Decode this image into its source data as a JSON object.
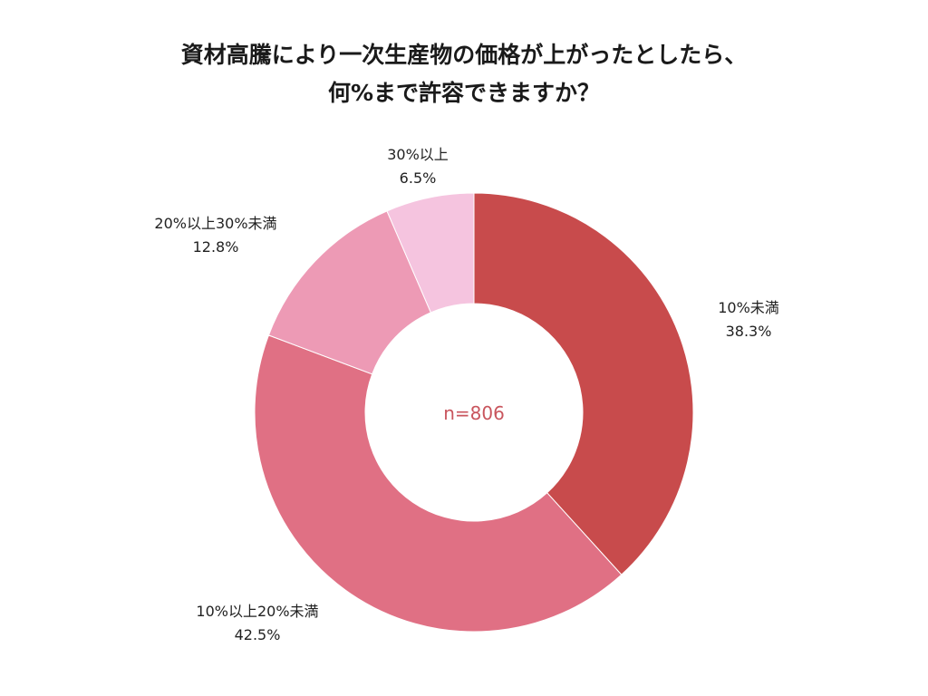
{
  "chart_data": {
    "type": "pie",
    "donut": true,
    "title": [
      "資材高騰により一次生産物の価格が上がったとしたら、",
      "何%まで許容できますか？"
    ],
    "center_label": "n=806",
    "center_color": "#c9555d",
    "legend": "none",
    "slices": [
      {
        "label": "10%未満",
        "value": 38.3,
        "value_label": "38.3%",
        "color": "#c84b4c"
      },
      {
        "label": "10%以上20%未満",
        "value": 42.5,
        "value_label": "42.5%",
        "color": "#e07084"
      },
      {
        "label": "20%以上30%未満",
        "value": 12.8,
        "value_label": "12.8%",
        "color": "#ed9ab5"
      },
      {
        "label": "30%以上",
        "value": 6.5,
        "value_label": "6.5%",
        "color": "#f5c4df"
      }
    ]
  }
}
